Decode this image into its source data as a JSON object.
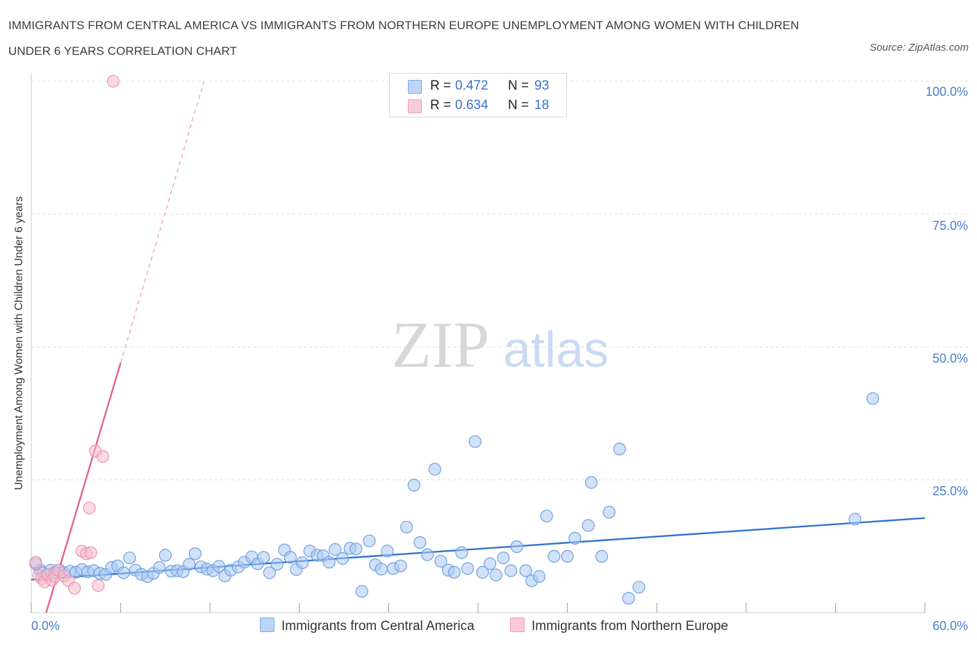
{
  "title": "IMMIGRANTS FROM CENTRAL AMERICA VS IMMIGRANTS FROM NORTHERN EUROPE UNEMPLOYMENT AMONG WOMEN WITH CHILDREN UNDER 6 YEARS CORRELATION CHART",
  "source": "Source: ZipAtlas.com",
  "watermark": {
    "zip": "ZIP",
    "atlas": "atlas"
  },
  "colors": {
    "blue_fill": "#a9c8f2",
    "blue_stroke": "#6fa0e0",
    "blue_line": "#2f74cf",
    "pink_fill": "#f7bccd",
    "pink_stroke": "#ee91ad",
    "pink_line": "#e0628f",
    "tick_text": "#4a7ec9",
    "grid": "#dddddd"
  },
  "legend": {
    "rows": [
      {
        "r_label": "R =",
        "r_value": "0.472",
        "n_label": "N =",
        "n_value": "93"
      },
      {
        "r_label": "R =",
        "r_value": "0.634",
        "n_label": "N =",
        "n_value": "18"
      }
    ]
  },
  "bottom_legend": [
    "Immigrants from Central America",
    "Immigrants from Northern Europe"
  ],
  "chart_data": {
    "type": "scatter",
    "xlabel": "",
    "ylabel": "Unemployment Among Women with Children Under 6 years",
    "xlim": [
      0,
      60
    ],
    "ylim": [
      0,
      100
    ],
    "x_tick_labels": [
      "0.0%",
      "60.0%"
    ],
    "y_ticks": [
      25,
      50,
      75,
      100
    ],
    "y_tick_labels": [
      "25.0%",
      "50.0%",
      "75.0%",
      "100.0%"
    ],
    "grid": true,
    "legend_position": "top-center",
    "series": [
      {
        "name": "Immigrants from Central America",
        "color": "#a9c8f2",
        "trend": {
          "x": [
            0,
            60
          ],
          "y": [
            6.2,
            17.8
          ]
        },
        "points": [
          [
            0.3,
            9.2
          ],
          [
            0.6,
            8.0
          ],
          [
            0.8,
            7.5
          ],
          [
            1.0,
            7.0
          ],
          [
            1.3,
            8.0
          ],
          [
            1.6,
            7.6
          ],
          [
            1.9,
            8.0
          ],
          [
            2.2,
            7.5
          ],
          [
            2.6,
            7.8
          ],
          [
            3.0,
            7.6
          ],
          [
            3.4,
            8.1
          ],
          [
            3.8,
            7.7
          ],
          [
            4.2,
            7.9
          ],
          [
            4.6,
            7.4
          ],
          [
            5.0,
            7.2
          ],
          [
            5.4,
            8.5
          ],
          [
            5.8,
            8.8
          ],
          [
            6.2,
            7.5
          ],
          [
            6.6,
            10.3
          ],
          [
            7.0,
            8.0
          ],
          [
            7.4,
            7.2
          ],
          [
            7.8,
            6.8
          ],
          [
            8.2,
            7.4
          ],
          [
            8.6,
            8.5
          ],
          [
            9.0,
            10.8
          ],
          [
            9.4,
            7.8
          ],
          [
            9.8,
            7.9
          ],
          [
            10.2,
            7.7
          ],
          [
            10.6,
            9.1
          ],
          [
            11.0,
            11.1
          ],
          [
            11.4,
            8.6
          ],
          [
            11.8,
            8.2
          ],
          [
            12.2,
            7.9
          ],
          [
            12.6,
            8.7
          ],
          [
            13.0,
            6.9
          ],
          [
            13.4,
            8.0
          ],
          [
            13.9,
            8.6
          ],
          [
            14.3,
            9.5
          ],
          [
            14.8,
            10.5
          ],
          [
            15.2,
            9.2
          ],
          [
            15.6,
            10.4
          ],
          [
            16.0,
            7.5
          ],
          [
            16.5,
            9.1
          ],
          [
            17.0,
            11.8
          ],
          [
            17.4,
            10.4
          ],
          [
            17.8,
            8.1
          ],
          [
            18.2,
            9.4
          ],
          [
            18.7,
            11.6
          ],
          [
            19.2,
            10.8
          ],
          [
            19.6,
            10.7
          ],
          [
            20.0,
            9.5
          ],
          [
            20.4,
            11.9
          ],
          [
            20.9,
            10.2
          ],
          [
            21.4,
            12.1
          ],
          [
            21.8,
            12.0
          ],
          [
            22.2,
            4.0
          ],
          [
            22.7,
            13.5
          ],
          [
            23.1,
            9.0
          ],
          [
            23.5,
            8.2
          ],
          [
            23.9,
            11.6
          ],
          [
            24.3,
            8.3
          ],
          [
            24.8,
            8.8
          ],
          [
            25.2,
            16.1
          ],
          [
            25.7,
            24.0
          ],
          [
            26.1,
            13.2
          ],
          [
            26.6,
            10.9
          ],
          [
            27.1,
            27.0
          ],
          [
            27.5,
            9.7
          ],
          [
            28.0,
            8.0
          ],
          [
            28.4,
            7.6
          ],
          [
            28.9,
            11.3
          ],
          [
            29.3,
            8.3
          ],
          [
            29.8,
            32.2
          ],
          [
            30.3,
            7.6
          ],
          [
            30.8,
            9.2
          ],
          [
            31.2,
            7.1
          ],
          [
            31.7,
            10.3
          ],
          [
            32.2,
            7.9
          ],
          [
            32.6,
            12.4
          ],
          [
            33.2,
            7.9
          ],
          [
            33.6,
            6.0
          ],
          [
            34.1,
            6.8
          ],
          [
            34.6,
            18.2
          ],
          [
            35.1,
            10.6
          ],
          [
            36.0,
            10.6
          ],
          [
            36.5,
            14.0
          ],
          [
            37.4,
            16.4
          ],
          [
            37.6,
            24.5
          ],
          [
            38.3,
            10.6
          ],
          [
            38.8,
            18.9
          ],
          [
            39.5,
            30.8
          ],
          [
            40.1,
            2.7
          ],
          [
            40.8,
            4.8
          ],
          [
            55.3,
            17.6
          ],
          [
            56.5,
            40.3
          ]
        ]
      },
      {
        "name": "Immigrants from Northern Europe",
        "color": "#f7bccd",
        "trend": {
          "x": [
            1.0,
            6.0
          ],
          "y": [
            0.0,
            47.0
          ]
        },
        "trend_extension": {
          "x": [
            6.0,
            11.6
          ],
          "y": [
            47.0,
            100.0
          ]
        },
        "points": [
          [
            0.3,
            9.5
          ],
          [
            0.5,
            7.0
          ],
          [
            0.7,
            6.4
          ],
          [
            0.9,
            5.8
          ],
          [
            1.1,
            7.2
          ],
          [
            1.4,
            6.1
          ],
          [
            1.6,
            6.8
          ],
          [
            1.8,
            8.0
          ],
          [
            2.2,
            6.9
          ],
          [
            2.5,
            6.0
          ],
          [
            2.9,
            4.6
          ],
          [
            3.4,
            11.6
          ],
          [
            3.7,
            11.1
          ],
          [
            3.9,
            19.7
          ],
          [
            4.0,
            11.3
          ],
          [
            4.3,
            30.4
          ],
          [
            4.5,
            5.1
          ],
          [
            4.8,
            29.4
          ],
          [
            5.5,
            100.0
          ]
        ]
      }
    ]
  }
}
